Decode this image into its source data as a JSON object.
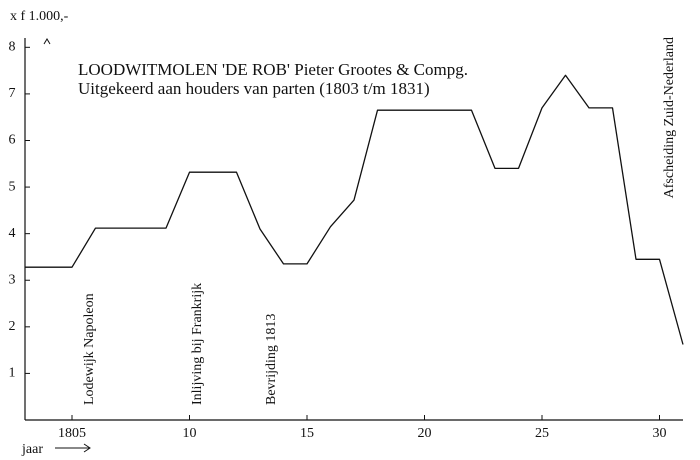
{
  "chart_data": {
    "type": "line",
    "title": "LOODWITMOLEN 'DE ROB' Pieter Grootes & Compg.",
    "subtitle": "Uitgekeerd aan houders van parten (1803 t/m 1831)",
    "y_label": "x f 1.000,-",
    "x_label": "jaar",
    "annotations": [
      "Lodewijk Napoleon",
      "Inlijving bij Frankrijk",
      "Bevrijding 1813",
      "Afscheiding Zuid-Nederland"
    ],
    "x": [
      1803,
      1805,
      1806,
      1809,
      1810,
      1812,
      1813,
      1814,
      1815,
      1816,
      1817,
      1818,
      1822,
      1823,
      1824,
      1825,
      1826,
      1827,
      1828,
      1829,
      1830,
      1831
    ],
    "series": [
      {
        "color": "#111111",
        "values": [
          3.28,
          3.28,
          4.12,
          4.12,
          5.32,
          5.32,
          4.1,
          3.35,
          3.35,
          4.15,
          4.72,
          6.65,
          6.65,
          5.4,
          5.4,
          6.7,
          7.4,
          6.7,
          6.7,
          3.45,
          3.45,
          1.62
        ]
      }
    ],
    "xlim": [
      1803,
      1831
    ],
    "ylim": [
      0,
      8.2
    ],
    "xticks": [
      1805,
      {
        "value": 1810,
        "label": "10"
      },
      {
        "value": 1815,
        "label": "15"
      },
      {
        "value": 1820,
        "label": "20"
      },
      {
        "value": 1825,
        "label": "25"
      },
      {
        "value": 1830,
        "label": "30"
      }
    ],
    "yticks": [
      1,
      2,
      3,
      4,
      5,
      6,
      7,
      8
    ],
    "grid": false
  }
}
